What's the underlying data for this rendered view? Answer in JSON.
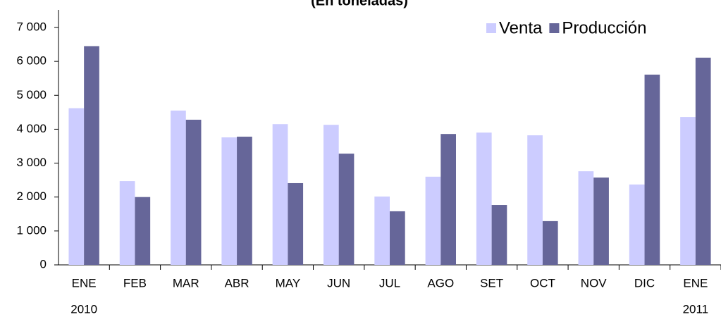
{
  "chart_data": {
    "type": "bar",
    "title": "(En toneladas)",
    "categories": [
      "ENE",
      "FEB",
      "MAR",
      "ABR",
      "MAY",
      "JUN",
      "JUL",
      "AGO",
      "SET",
      "OCT",
      "NOV",
      "DIC",
      "ENE"
    ],
    "annotations": [
      "2010",
      "2011"
    ],
    "series": [
      {
        "name": "Venta",
        "color": "#ccccff",
        "values": [
          4620,
          2470,
          4550,
          3760,
          4150,
          4130,
          2015,
          2600,
          3900,
          3820,
          2760,
          2370,
          4360
        ]
      },
      {
        "name": "Producción",
        "color": "#666699",
        "values": [
          6450,
          2000,
          4280,
          3780,
          2410,
          3280,
          1580,
          3860,
          1765,
          1290,
          2575,
          5610,
          6110
        ]
      }
    ],
    "ylim": [
      0,
      7000
    ],
    "yticks": [
      0,
      {
        "value": 1000,
        "label": "1 000"
      },
      {
        "value": 2000,
        "label": "2 000"
      },
      {
        "value": 3000,
        "label": "3 000"
      },
      {
        "value": 4000,
        "label": "4 000"
      },
      {
        "value": 5000,
        "label": "5 000"
      },
      {
        "value": 6000,
        "label": "6 000"
      },
      {
        "value": 7000,
        "label": "7 000"
      }
    ],
    "grid": false,
    "legend": "top-right"
  }
}
